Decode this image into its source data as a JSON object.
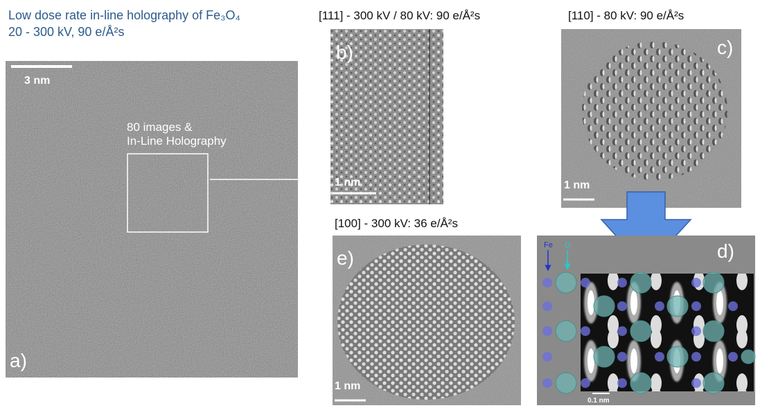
{
  "header": {
    "title": "Low dose rate in-line holography of Fe₃O₄",
    "subtitle": "20 - 300 kV, 90 e/Å²s"
  },
  "panels": {
    "a": {
      "label": "a)",
      "scale": "3 nm",
      "annotation": [
        "80 images &",
        "In-Line Holography"
      ]
    },
    "b": {
      "caption": "[111] - 300 kV / 80 kV: 90  e/Å²s",
      "label": "b)",
      "scale": "1 nm"
    },
    "c": {
      "caption": "[110] - 80 kV:  90  e/Å²s",
      "label": "c)",
      "scale": "1 nm"
    },
    "e": {
      "caption": "[100] - 300 kV:  36  e/Å²s",
      "label": "e)",
      "scale": "1 nm"
    },
    "d": {
      "label": "d)",
      "fe": "Fe",
      "o": "O",
      "scale": "0.1 nm"
    }
  }
}
